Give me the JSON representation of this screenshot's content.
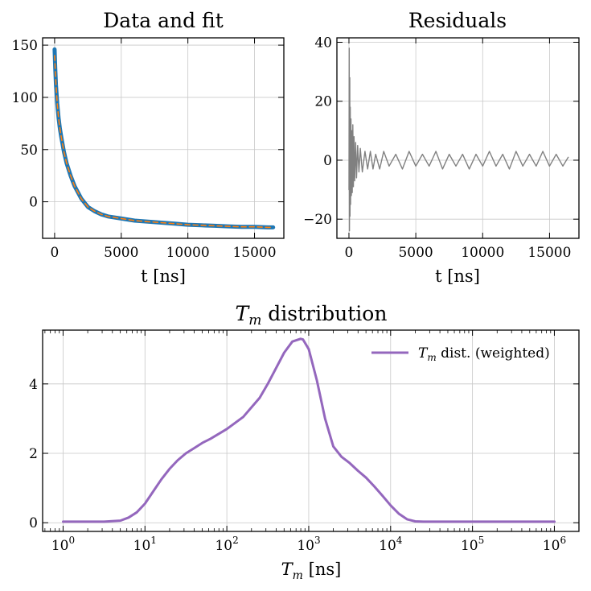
{
  "chart_data": [
    {
      "id": "fit",
      "type": "line",
      "title": "Data and fit",
      "xlabel": "t [ns]",
      "ylabel": "",
      "xlim": [
        -900,
        17200
      ],
      "ylim": [
        -35,
        157
      ],
      "xticks": [
        0,
        5000,
        10000,
        15000
      ],
      "xtick_labels": [
        "0",
        "5000",
        "10000",
        "15000"
      ],
      "yticks": [
        0,
        50,
        100,
        150
      ],
      "ytick_labels": [
        "0",
        "50",
        "100",
        "150"
      ],
      "grid": true,
      "series": [
        {
          "name": "data",
          "color": "#1f77b4",
          "x": [
            0,
            50,
            100,
            200,
            300,
            400,
            500,
            700,
            900,
            1200,
            1500,
            2000,
            2500,
            3000,
            3500,
            4000,
            5000,
            6000,
            7000,
            8000,
            9000,
            10000,
            11000,
            12000,
            13000,
            14000,
            15000,
            16000,
            16400
          ],
          "y": [
            146,
            128,
            112,
            94,
            80,
            70,
            62,
            48,
            37,
            25,
            15,
            3,
            -5,
            -9,
            -12,
            -14,
            -16,
            -18,
            -19,
            -20,
            -21,
            -22,
            -22.5,
            -23,
            -23.5,
            -24,
            -24,
            -24.5,
            -24.5
          ]
        },
        {
          "name": "fit",
          "color": "#ff7f0e",
          "style": "dashed",
          "x": [
            0,
            50,
            100,
            200,
            300,
            400,
            500,
            700,
            900,
            1200,
            1500,
            2000,
            2500,
            3000,
            3500,
            4000,
            5000,
            6000,
            7000,
            8000,
            9000,
            10000,
            11000,
            12000,
            13000,
            14000,
            15000,
            16000,
            16400
          ],
          "y": [
            140,
            127,
            112,
            94,
            80,
            70,
            62,
            48,
            37,
            25,
            15,
            3,
            -5,
            -9,
            -12,
            -14,
            -16,
            -18,
            -19,
            -20,
            -21,
            -22,
            -22.5,
            -23,
            -23.5,
            -24,
            -24,
            -24.5,
            -24.5
          ]
        }
      ]
    },
    {
      "id": "residuals",
      "type": "line",
      "title": "Residuals",
      "xlabel": "t [ns]",
      "ylabel": "",
      "xlim": [
        -900,
        17200
      ],
      "ylim": [
        -26.5,
        41.5
      ],
      "xticks": [
        0,
        5000,
        10000,
        15000
      ],
      "xtick_labels": [
        "0",
        "5000",
        "10000",
        "15000"
      ],
      "yticks": [
        -20,
        0,
        20,
        40
      ],
      "ytick_labels": [
        "−20",
        "0",
        "20",
        "40"
      ],
      "grid": true,
      "series": [
        {
          "name": "residuals",
          "color": "#808080",
          "x": [
            0,
            20,
            40,
            60,
            80,
            100,
            120,
            150,
            180,
            210,
            250,
            290,
            330,
            380,
            430,
            500,
            570,
            650,
            750,
            850,
            1000,
            1200,
            1400,
            1600,
            1800,
            2000,
            2300,
            2600,
            3000,
            3500,
            4000,
            4500,
            5000,
            5500,
            6000,
            6500,
            7000,
            7500,
            8000,
            8500,
            9000,
            9500,
            10000,
            10500,
            11000,
            11500,
            12000,
            12500,
            13000,
            13500,
            14000,
            14500,
            15000,
            15500,
            16000,
            16400
          ],
          "y": [
            -10,
            38,
            -24,
            28,
            -19,
            18,
            -15,
            14,
            -12,
            10,
            -11,
            12,
            -9,
            8,
            -7,
            6,
            -6,
            5,
            -4,
            4,
            -4,
            3,
            -3,
            3,
            -3,
            2,
            -3,
            3,
            -2,
            2,
            -3,
            3,
            -2,
            2,
            -2,
            3,
            -3,
            2,
            -2,
            2,
            -3,
            2,
            -2,
            3,
            -2,
            2,
            -3,
            3,
            -2,
            2,
            -2,
            3,
            -2,
            2,
            -2,
            1
          ]
        }
      ]
    },
    {
      "id": "tm",
      "type": "line",
      "title": "T_m distribution",
      "title_symbol": "T",
      "title_subscript": "m",
      "title_rest": " distribution",
      "xlabel": "T_m [ns]",
      "xlabel_symbol": "T",
      "xlabel_subscript": "m",
      "xlabel_rest": " [ns]",
      "xscale": "log",
      "xlim": [
        -0.25,
        6.3
      ],
      "ylim": [
        -0.25,
        5.55
      ],
      "xticks": [
        0,
        1,
        2,
        3,
        4,
        5,
        6
      ],
      "xtick_labels": [
        "10^0",
        "10^1",
        "10^2",
        "10^3",
        "10^4",
        "10^5",
        "10^6"
      ],
      "yticks": [
        0,
        2,
        4
      ],
      "ytick_labels": [
        "0",
        "2",
        "4"
      ],
      "grid": true,
      "legend": {
        "position": "top-right",
        "symbol": "T",
        "subscript": "m",
        "rest": " dist. (weighted)"
      },
      "series": [
        {
          "name": "T_m dist. (weighted)",
          "color": "#9467bd",
          "log10x": [
            0,
            0.5,
            0.7,
            0.8,
            0.9,
            1.0,
            1.1,
            1.2,
            1.3,
            1.4,
            1.5,
            1.6,
            1.7,
            1.8,
            2.0,
            2.2,
            2.4,
            2.5,
            2.6,
            2.7,
            2.8,
            2.9,
            2.93,
            3.0,
            3.1,
            3.2,
            3.3,
            3.4,
            3.5,
            3.6,
            3.7,
            3.8,
            3.9,
            4.0,
            4.1,
            4.2,
            4.3,
            4.4,
            4.5,
            5.0,
            5.5,
            6.0
          ],
          "y": [
            0.03,
            0.03,
            0.06,
            0.15,
            0.3,
            0.55,
            0.9,
            1.25,
            1.55,
            1.8,
            2.0,
            2.15,
            2.3,
            2.42,
            2.7,
            3.05,
            3.6,
            4.0,
            4.45,
            4.9,
            5.22,
            5.3,
            5.28,
            5.0,
            4.1,
            3.0,
            2.2,
            1.9,
            1.72,
            1.5,
            1.3,
            1.05,
            0.78,
            0.5,
            0.26,
            0.1,
            0.04,
            0.03,
            0.03,
            0.03,
            0.03,
            0.03
          ]
        }
      ]
    }
  ]
}
